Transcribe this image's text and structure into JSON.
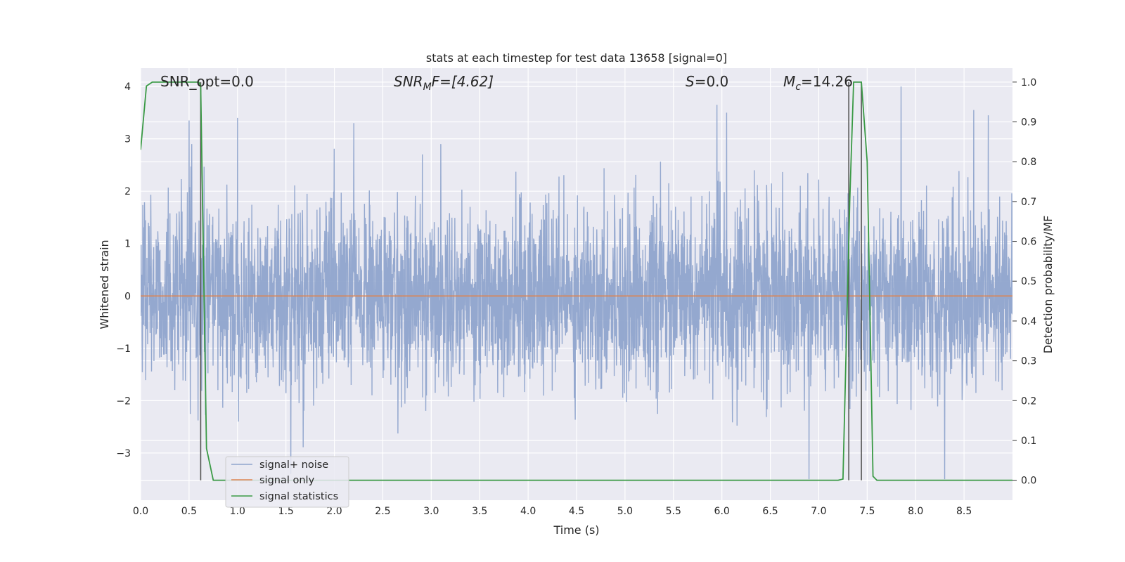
{
  "chart_data": {
    "type": "line",
    "title": "stats at each timestep for test data 13658 [signal=0]",
    "xlabel": "Time (s)",
    "ylabel": "Whitened strain",
    "y2label": "Detection probability/MF",
    "xlim": [
      0.0,
      9.0
    ],
    "ylim": [
      -3.9,
      4.35
    ],
    "y2lim": [
      -0.05,
      1.035
    ],
    "xticks": [
      "0.0",
      "0.5",
      "1.0",
      "1.5",
      "2.0",
      "2.5",
      "3.0",
      "3.5",
      "4.0",
      "4.5",
      "5.0",
      "5.5",
      "6.0",
      "6.5",
      "7.0",
      "7.5",
      "8.0",
      "8.5"
    ],
    "yticks": [
      "−3",
      "−2",
      "−1",
      "0",
      "1",
      "2",
      "3",
      "4"
    ],
    "y2ticks": [
      "0.0",
      "0.1",
      "0.2",
      "0.3",
      "0.4",
      "0.5",
      "0.6",
      "0.7",
      "0.8",
      "0.9",
      "1.0"
    ],
    "grid": true,
    "legend_position": "lower-left",
    "annotations": {
      "snr_opt": "SNR_opt=0.0",
      "snr_mf_prefix": "SNR",
      "snr_mf_sub": "M",
      "snr_mf_suffix": "F=[4.62]",
      "s_var": "S",
      "s_value": "=0.0",
      "mc_var": "M",
      "mc_sub": "c",
      "mc_value": "=14.26"
    },
    "series": [
      {
        "name": "signal+ noise",
        "color": "#8fa4cc",
        "description_values": {
          "range_x": [
            0.0,
            9.0
          ],
          "typical_y_band": [
            -1.5,
            1.5
          ],
          "peak_values": [
            [
              0.5,
              3.35
            ],
            [
              1.0,
              3.4
            ],
            [
              2.2,
              3.3
            ],
            [
              5.95,
              3.65
            ],
            [
              6.05,
              3.5
            ],
            [
              7.85,
              4.0
            ],
            [
              8.6,
              3.55
            ],
            [
              8.75,
              3.45
            ],
            [
              6.9,
              -3.5
            ],
            [
              8.3,
              -3.5
            ],
            [
              1.55,
              -3.4
            ]
          ]
        }
      },
      {
        "name": "signal only",
        "color": "#dd8452",
        "x": [
          0.0,
          9.0
        ],
        "y": [
          0.0,
          0.0
        ]
      },
      {
        "name": "signal statistics",
        "color": "#3a9a45",
        "axis": "right",
        "x": [
          0.0,
          0.06,
          0.12,
          0.6,
          0.62,
          0.68,
          0.75,
          7.2,
          7.25,
          7.32,
          7.36,
          7.4,
          7.44,
          7.5,
          7.56,
          7.6,
          9.0
        ],
        "y": [
          0.83,
          0.99,
          1.0,
          1.0,
          0.99,
          0.08,
          0.0,
          0.0,
          0.003,
          0.7,
          1.0,
          1.0,
          1.0,
          0.8,
          0.01,
          0.0,
          0.0
        ]
      }
    ],
    "vertical_lines": {
      "color": "#555555",
      "x": [
        0.62,
        7.31,
        7.44
      ]
    }
  }
}
